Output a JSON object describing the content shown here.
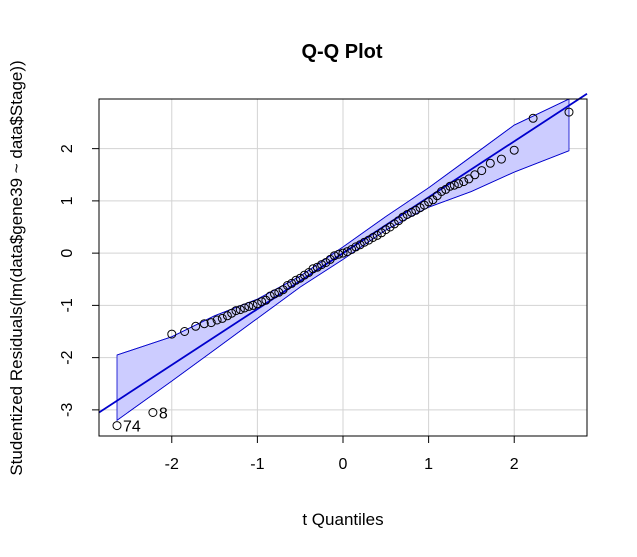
{
  "chart_data": {
    "type": "scatter",
    "title": "Q-Q Plot",
    "xlabel": "t Quantiles",
    "ylabel": "Studentized Residuals(lm(data$gene39 ~ data$Stage))",
    "xlim": [
      -2.85,
      2.85
    ],
    "ylim": [
      -3.5,
      2.95
    ],
    "xticks": [
      -2,
      -1,
      0,
      1,
      2
    ],
    "yticks": [
      -3,
      -2,
      -1,
      0,
      1,
      2
    ],
    "xtick_labels": [
      "-2",
      "-1",
      "0",
      "1",
      "2"
    ],
    "ytick_labels": [
      "-3",
      "-2",
      "-1",
      "0",
      "1",
      "2"
    ],
    "grid": true,
    "reference_line": {
      "intercept": 0.0,
      "slope": 1.07
    },
    "envelope": {
      "x": [
        -2.64,
        -2.0,
        -1.5,
        -1.0,
        -0.5,
        0.0,
        0.5,
        1.0,
        1.5,
        2.0,
        2.64
      ],
      "upper": [
        -1.95,
        -1.6,
        -1.2,
        -0.88,
        -0.44,
        0.12,
        0.7,
        1.25,
        1.85,
        2.45,
        2.95
      ],
      "lower": [
        -3.2,
        -2.45,
        -1.85,
        -1.25,
        -0.65,
        -0.12,
        0.44,
        0.88,
        1.18,
        1.55,
        1.96
      ]
    },
    "points": {
      "x": [
        -2.64,
        -2.22,
        -2.0,
        -1.85,
        -1.72,
        -1.62,
        -1.54,
        -1.47,
        -1.41,
        -1.35,
        -1.3,
        -1.25,
        -1.2,
        -1.15,
        -1.1,
        -1.05,
        -1.0,
        -0.95,
        -0.9,
        -0.85,
        -0.8,
        -0.75,
        -0.7,
        -0.65,
        -0.6,
        -0.55,
        -0.5,
        -0.45,
        -0.4,
        -0.35,
        -0.3,
        -0.25,
        -0.2,
        -0.15,
        -0.1,
        -0.05,
        0.0,
        0.05,
        0.1,
        0.15,
        0.2,
        0.25,
        0.3,
        0.35,
        0.4,
        0.45,
        0.5,
        0.55,
        0.6,
        0.65,
        0.7,
        0.75,
        0.8,
        0.85,
        0.9,
        0.95,
        1.0,
        1.05,
        1.1,
        1.15,
        1.2,
        1.25,
        1.3,
        1.35,
        1.41,
        1.47,
        1.54,
        1.62,
        1.72,
        1.85,
        2.0,
        2.22,
        2.64
      ],
      "y": [
        -3.3,
        -3.05,
        -1.55,
        -1.5,
        -1.4,
        -1.35,
        -1.33,
        -1.28,
        -1.25,
        -1.2,
        -1.15,
        -1.1,
        -1.08,
        -1.05,
        -1.02,
        -1.0,
        -0.97,
        -0.93,
        -0.9,
        -0.82,
        -0.78,
        -0.75,
        -0.7,
        -0.62,
        -0.58,
        -0.52,
        -0.48,
        -0.42,
        -0.37,
        -0.3,
        -0.27,
        -0.22,
        -0.18,
        -0.12,
        -0.05,
        -0.02,
        0.0,
        0.03,
        0.07,
        0.12,
        0.16,
        0.21,
        0.25,
        0.3,
        0.34,
        0.39,
        0.45,
        0.5,
        0.56,
        0.62,
        0.69,
        0.74,
        0.78,
        0.82,
        0.87,
        0.92,
        0.98,
        1.02,
        1.1,
        1.18,
        1.22,
        1.28,
        1.3,
        1.33,
        1.37,
        1.42,
        1.5,
        1.58,
        1.72,
        1.8,
        1.97,
        2.58,
        2.7
      ]
    },
    "annotations": [
      {
        "label": "74",
        "x": -2.64,
        "y": -3.3
      },
      {
        "label": "8",
        "x": -2.22,
        "y": -3.05
      }
    ],
    "colors": {
      "envelope_fill": "#ccccff",
      "line": "#0000cc",
      "grid": "#d3d3d3",
      "point": "#000000"
    }
  }
}
